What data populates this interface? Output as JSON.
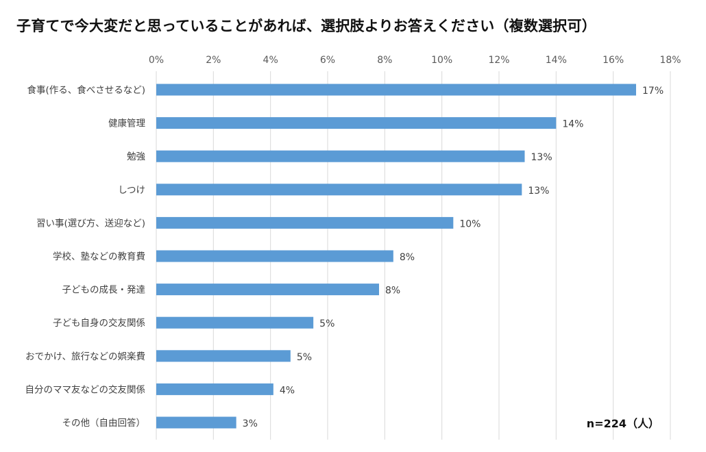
{
  "chart_data": {
    "type": "bar",
    "orientation": "horizontal",
    "title": "子育てで今大変だと思っていることがあれば、選択肢よりお答えください（複数選択可）",
    "categories": [
      "食事(作る、食べさせるなど)",
      "健康管理",
      "勉強",
      "しつけ",
      "習い事(選び方、送迎など)",
      "学校、塾などの教育費",
      "子どもの成長・発達",
      "子ども自身の交友関係",
      "おでかけ、旅行などの娯楽費",
      "自分のママ友などの交友関係",
      "その他（自由回答）"
    ],
    "values": [
      16.8,
      14.0,
      12.9,
      12.8,
      10.4,
      8.3,
      7.8,
      5.5,
      4.7,
      4.1,
      2.8
    ],
    "data_labels": [
      "17%",
      "14%",
      "13%",
      "13%",
      "10%",
      "8%",
      "8%",
      "5%",
      "5%",
      "4%",
      "3%"
    ],
    "xlim": [
      0,
      18
    ],
    "xticks": [
      0,
      2,
      4,
      6,
      8,
      10,
      12,
      14,
      16,
      18
    ],
    "xtick_labels": [
      "0%",
      "2%",
      "4%",
      "6%",
      "8%",
      "10%",
      "12%",
      "14%",
      "16%",
      "18%"
    ],
    "xaxis_position": "top",
    "grid": true,
    "bar_color": "#5B9BD5",
    "grid_color": "#D9D9D9",
    "note": "n=224（人）"
  }
}
